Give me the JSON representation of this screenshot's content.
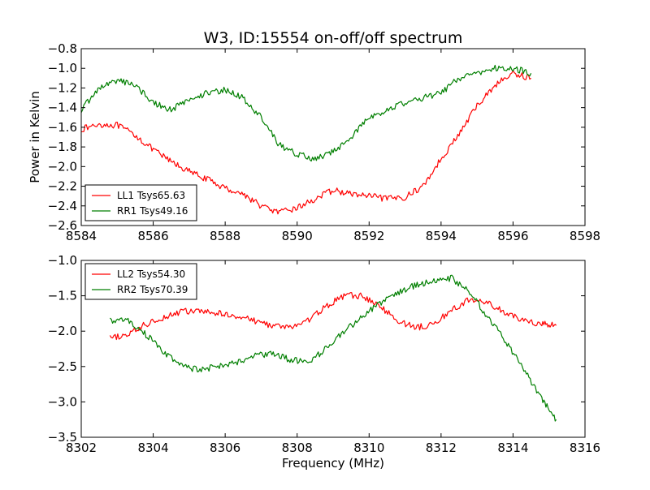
{
  "colors": {
    "ll": "#ff0000",
    "rr": "#007f00",
    "frame": "#000000",
    "background": "#ffffff"
  },
  "chart_data": [
    {
      "type": "line",
      "title": "W3, ID:15554 on-off/off spectrum",
      "xlabel": "",
      "ylabel": "Power in Kelvin",
      "xlim": [
        8584,
        8598
      ],
      "ylim": [
        -2.6,
        -0.8
      ],
      "xticks": [
        "8584",
        "8586",
        "8588",
        "8590",
        "8592",
        "8594",
        "8596",
        "8598"
      ],
      "yticks": [
        "−2.6",
        "−2.4",
        "−2.2",
        "−2.0",
        "−1.8",
        "−1.6",
        "−1.4",
        "−1.2",
        "−1.0",
        "−0.8"
      ],
      "grid": false,
      "legend": "lower-left",
      "series": [
        {
          "name": "LL1 Tsys65.63",
          "color": "#ff0000",
          "x": [
            8584.0,
            8584.5,
            8585.0,
            8585.5,
            8586.0,
            8586.5,
            8587.0,
            8587.5,
            8588.0,
            8588.5,
            8589.0,
            8589.5,
            8590.0,
            8590.5,
            8591.0,
            8591.5,
            8592.0,
            8592.5,
            8593.0,
            8593.5,
            8594.0,
            8594.5,
            8595.0,
            8595.5,
            8596.0,
            8596.5
          ],
          "y": [
            -1.62,
            -1.57,
            -1.58,
            -1.68,
            -1.83,
            -1.95,
            -2.05,
            -2.13,
            -2.22,
            -2.28,
            -2.4,
            -2.47,
            -2.42,
            -2.33,
            -2.24,
            -2.28,
            -2.3,
            -2.33,
            -2.31,
            -2.2,
            -1.92,
            -1.67,
            -1.38,
            -1.17,
            -1.05,
            -1.1
          ]
        },
        {
          "name": "RR1 Tsys49.16",
          "color": "#007f00",
          "x": [
            8584.0,
            8584.5,
            8585.0,
            8585.5,
            8586.0,
            8586.5,
            8587.0,
            8587.5,
            8588.0,
            8588.5,
            8589.0,
            8589.5,
            8590.0,
            8590.5,
            8591.0,
            8591.5,
            8592.0,
            8592.5,
            8593.0,
            8593.5,
            8594.0,
            8594.5,
            8595.0,
            8595.5,
            8596.0,
            8596.5
          ],
          "y": [
            -1.42,
            -1.2,
            -1.12,
            -1.17,
            -1.35,
            -1.42,
            -1.32,
            -1.25,
            -1.22,
            -1.3,
            -1.5,
            -1.78,
            -1.87,
            -1.93,
            -1.85,
            -1.7,
            -1.5,
            -1.42,
            -1.35,
            -1.3,
            -1.25,
            -1.1,
            -1.05,
            -1.0,
            -1.0,
            -1.05
          ]
        }
      ]
    },
    {
      "type": "line",
      "title": "",
      "xlabel": "Frequency (MHz)",
      "ylabel": "",
      "xlim": [
        8302,
        8316
      ],
      "ylim": [
        -3.5,
        -1.0
      ],
      "xticks": [
        "8302",
        "8304",
        "8306",
        "8308",
        "8310",
        "8312",
        "8314",
        "8316"
      ],
      "yticks": [
        "−3.5",
        "−3.0",
        "−2.5",
        "−2.0",
        "−1.5",
        "−1.0"
      ],
      "grid": false,
      "legend": "upper-left",
      "series": [
        {
          "name": "LL2 Tsys54.30",
          "color": "#ff0000",
          "x": [
            8302.8,
            8303.3,
            8303.8,
            8304.3,
            8304.8,
            8305.3,
            8305.8,
            8306.3,
            8306.8,
            8307.3,
            8307.8,
            8308.3,
            8308.8,
            8309.3,
            8309.8,
            8310.3,
            8310.8,
            8311.3,
            8311.8,
            8312.3,
            8312.8,
            8313.3,
            8313.8,
            8314.3,
            8314.8,
            8315.2
          ],
          "y": [
            -2.1,
            -2.05,
            -1.9,
            -1.8,
            -1.72,
            -1.72,
            -1.75,
            -1.78,
            -1.85,
            -1.92,
            -1.95,
            -1.85,
            -1.65,
            -1.5,
            -1.5,
            -1.65,
            -1.85,
            -1.95,
            -1.9,
            -1.7,
            -1.55,
            -1.6,
            -1.75,
            -1.85,
            -1.9,
            -1.92
          ]
        },
        {
          "name": "RR2 Tsys70.39",
          "color": "#007f00",
          "x": [
            8302.8,
            8303.3,
            8303.8,
            8304.3,
            8304.8,
            8305.3,
            8305.8,
            8306.3,
            8306.8,
            8307.3,
            8307.8,
            8308.3,
            8308.8,
            8309.3,
            8309.8,
            8310.3,
            8310.8,
            8311.3,
            8311.8,
            8312.3,
            8312.8,
            8313.3,
            8313.8,
            8314.3,
            8314.8,
            8315.2
          ],
          "y": [
            -1.85,
            -1.85,
            -2.05,
            -2.3,
            -2.5,
            -2.55,
            -2.5,
            -2.45,
            -2.35,
            -2.32,
            -2.4,
            -2.45,
            -2.25,
            -2.0,
            -1.8,
            -1.6,
            -1.45,
            -1.35,
            -1.28,
            -1.25,
            -1.45,
            -1.8,
            -2.15,
            -2.55,
            -2.95,
            -3.25
          ]
        }
      ]
    }
  ]
}
